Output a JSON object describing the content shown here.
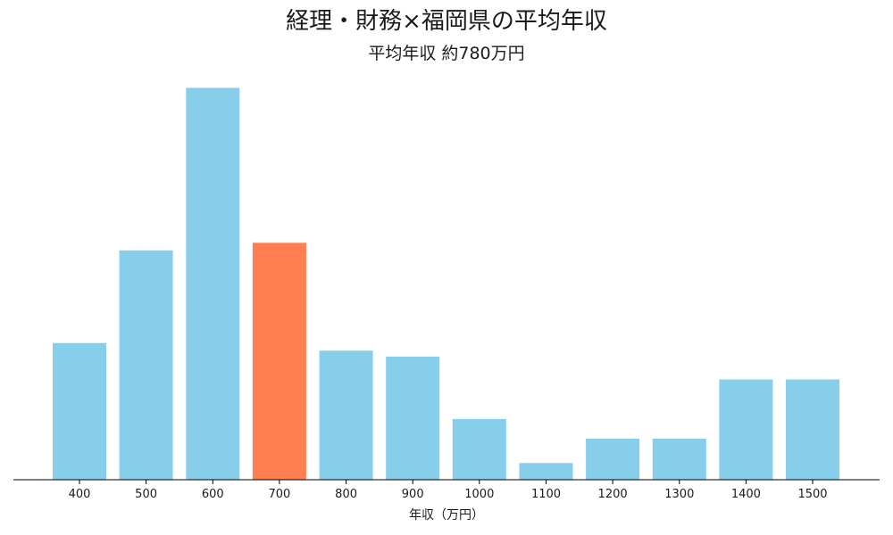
{
  "chart_data": {
    "type": "bar",
    "title": "経理・財務×福岡県の平均年収",
    "subtitle": "平均年収 約780万円",
    "xlabel": "年収（万円）",
    "ylabel": "",
    "categories": [
      "400",
      "500",
      "600",
      "700",
      "800",
      "900",
      "1000",
      "1100",
      "1200",
      "1300",
      "1400",
      "1500"
    ],
    "values": [
      9,
      15.1,
      25.8,
      15.6,
      8.5,
      8.1,
      4,
      1.1,
      2.7,
      2.7,
      6.6,
      6.6
    ],
    "highlight_category": "700",
    "ylim": [
      0,
      27.3
    ],
    "grid": false,
    "legend": "none",
    "colors": {
      "bar": "#87CEEB",
      "highlight": "#FF7F50",
      "axis": "#000000"
    }
  }
}
